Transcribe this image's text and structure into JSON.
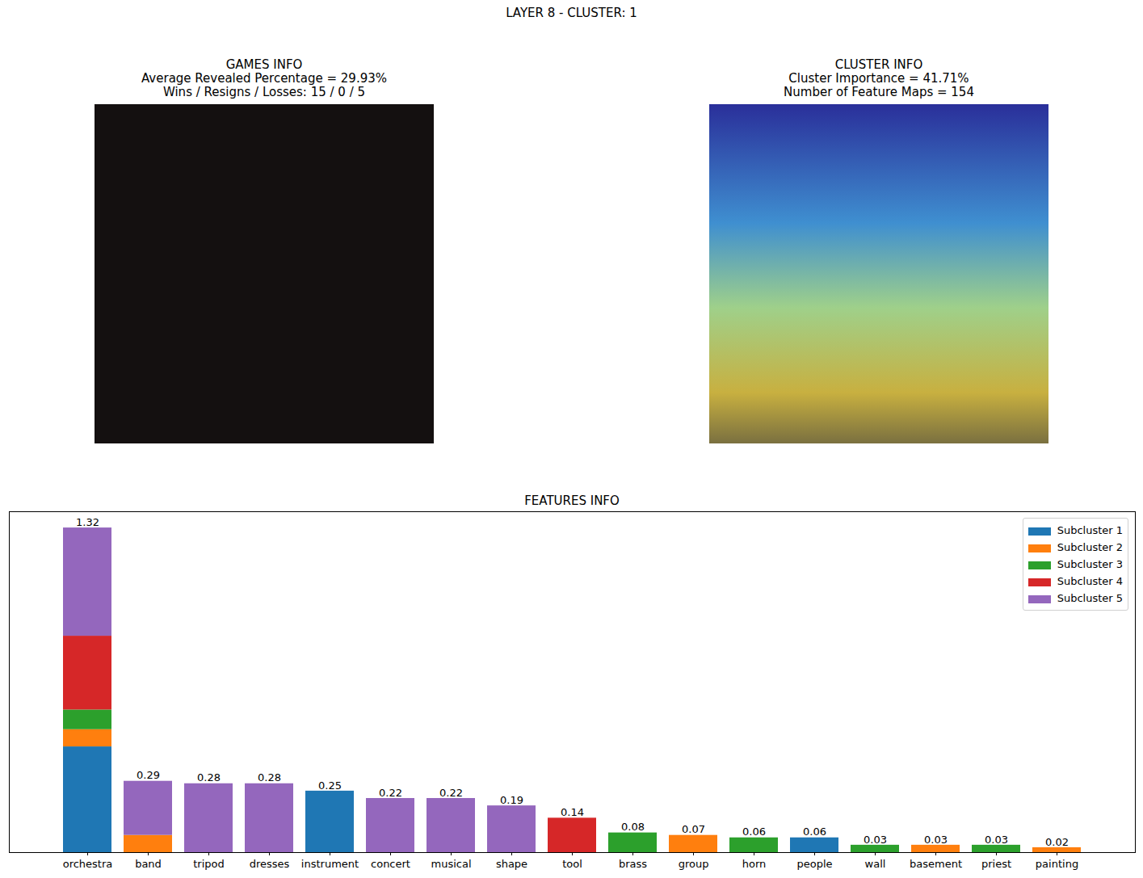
{
  "title": "LAYER 8 - CLUSTER: 1",
  "panels": [
    {
      "title": "GAMES INFO",
      "lines": [
        "Average Revealed Percentage = 29.93%",
        "Wins / Resigns / Losses: 15 / 0 / 5"
      ]
    },
    {
      "title": "CLUSTER INFO",
      "lines": [
        "Cluster Importance = 41.71%",
        "Number of Feature Maps = 154"
      ]
    }
  ],
  "chart_data": {
    "type": "bar",
    "title": "FEATURES INFO",
    "stacked": true,
    "data_labels": true,
    "tick_labels": "x",
    "legend": "upper right",
    "categories": [
      "orchestra",
      "band",
      "tripod",
      "dresses",
      "instrument",
      "concert",
      "musical",
      "shape",
      "tool",
      "brass",
      "group",
      "horn",
      "people",
      "wall",
      "basement",
      "priest",
      "painting"
    ],
    "totals": [
      1.32,
      0.29,
      0.28,
      0.28,
      0.25,
      0.22,
      0.22,
      0.19,
      0.14,
      0.08,
      0.07,
      0.06,
      0.06,
      0.03,
      0.03,
      0.03,
      0.02
    ],
    "series": [
      {
        "name": "Subcluster 1",
        "color": "#1f77b4",
        "values": [
          0.43,
          null,
          null,
          null,
          0.25,
          null,
          null,
          null,
          null,
          null,
          null,
          null,
          0.06,
          null,
          null,
          null,
          null
        ]
      },
      {
        "name": "Subcluster 2",
        "color": "#ff7f0e",
        "values": [
          0.07,
          0.07,
          null,
          null,
          null,
          null,
          null,
          null,
          null,
          null,
          0.07,
          null,
          null,
          null,
          0.03,
          null,
          0.02
        ]
      },
      {
        "name": "Subcluster 3",
        "color": "#2ca02c",
        "values": [
          0.08,
          null,
          null,
          null,
          null,
          null,
          null,
          null,
          null,
          0.08,
          null,
          0.06,
          null,
          0.03,
          null,
          0.03,
          null
        ]
      },
      {
        "name": "Subcluster 4",
        "color": "#d62728",
        "values": [
          0.3,
          null,
          null,
          null,
          null,
          null,
          null,
          null,
          0.14,
          null,
          null,
          null,
          null,
          null,
          null,
          null,
          null
        ]
      },
      {
        "name": "Subcluster 5",
        "color": "#9467bd",
        "values": [
          0.44,
          0.22,
          0.28,
          0.28,
          null,
          0.22,
          0.22,
          0.19,
          null,
          null,
          null,
          null,
          null,
          null,
          null,
          null,
          null
        ]
      }
    ],
    "ylim": [
      0,
      1.386
    ]
  }
}
